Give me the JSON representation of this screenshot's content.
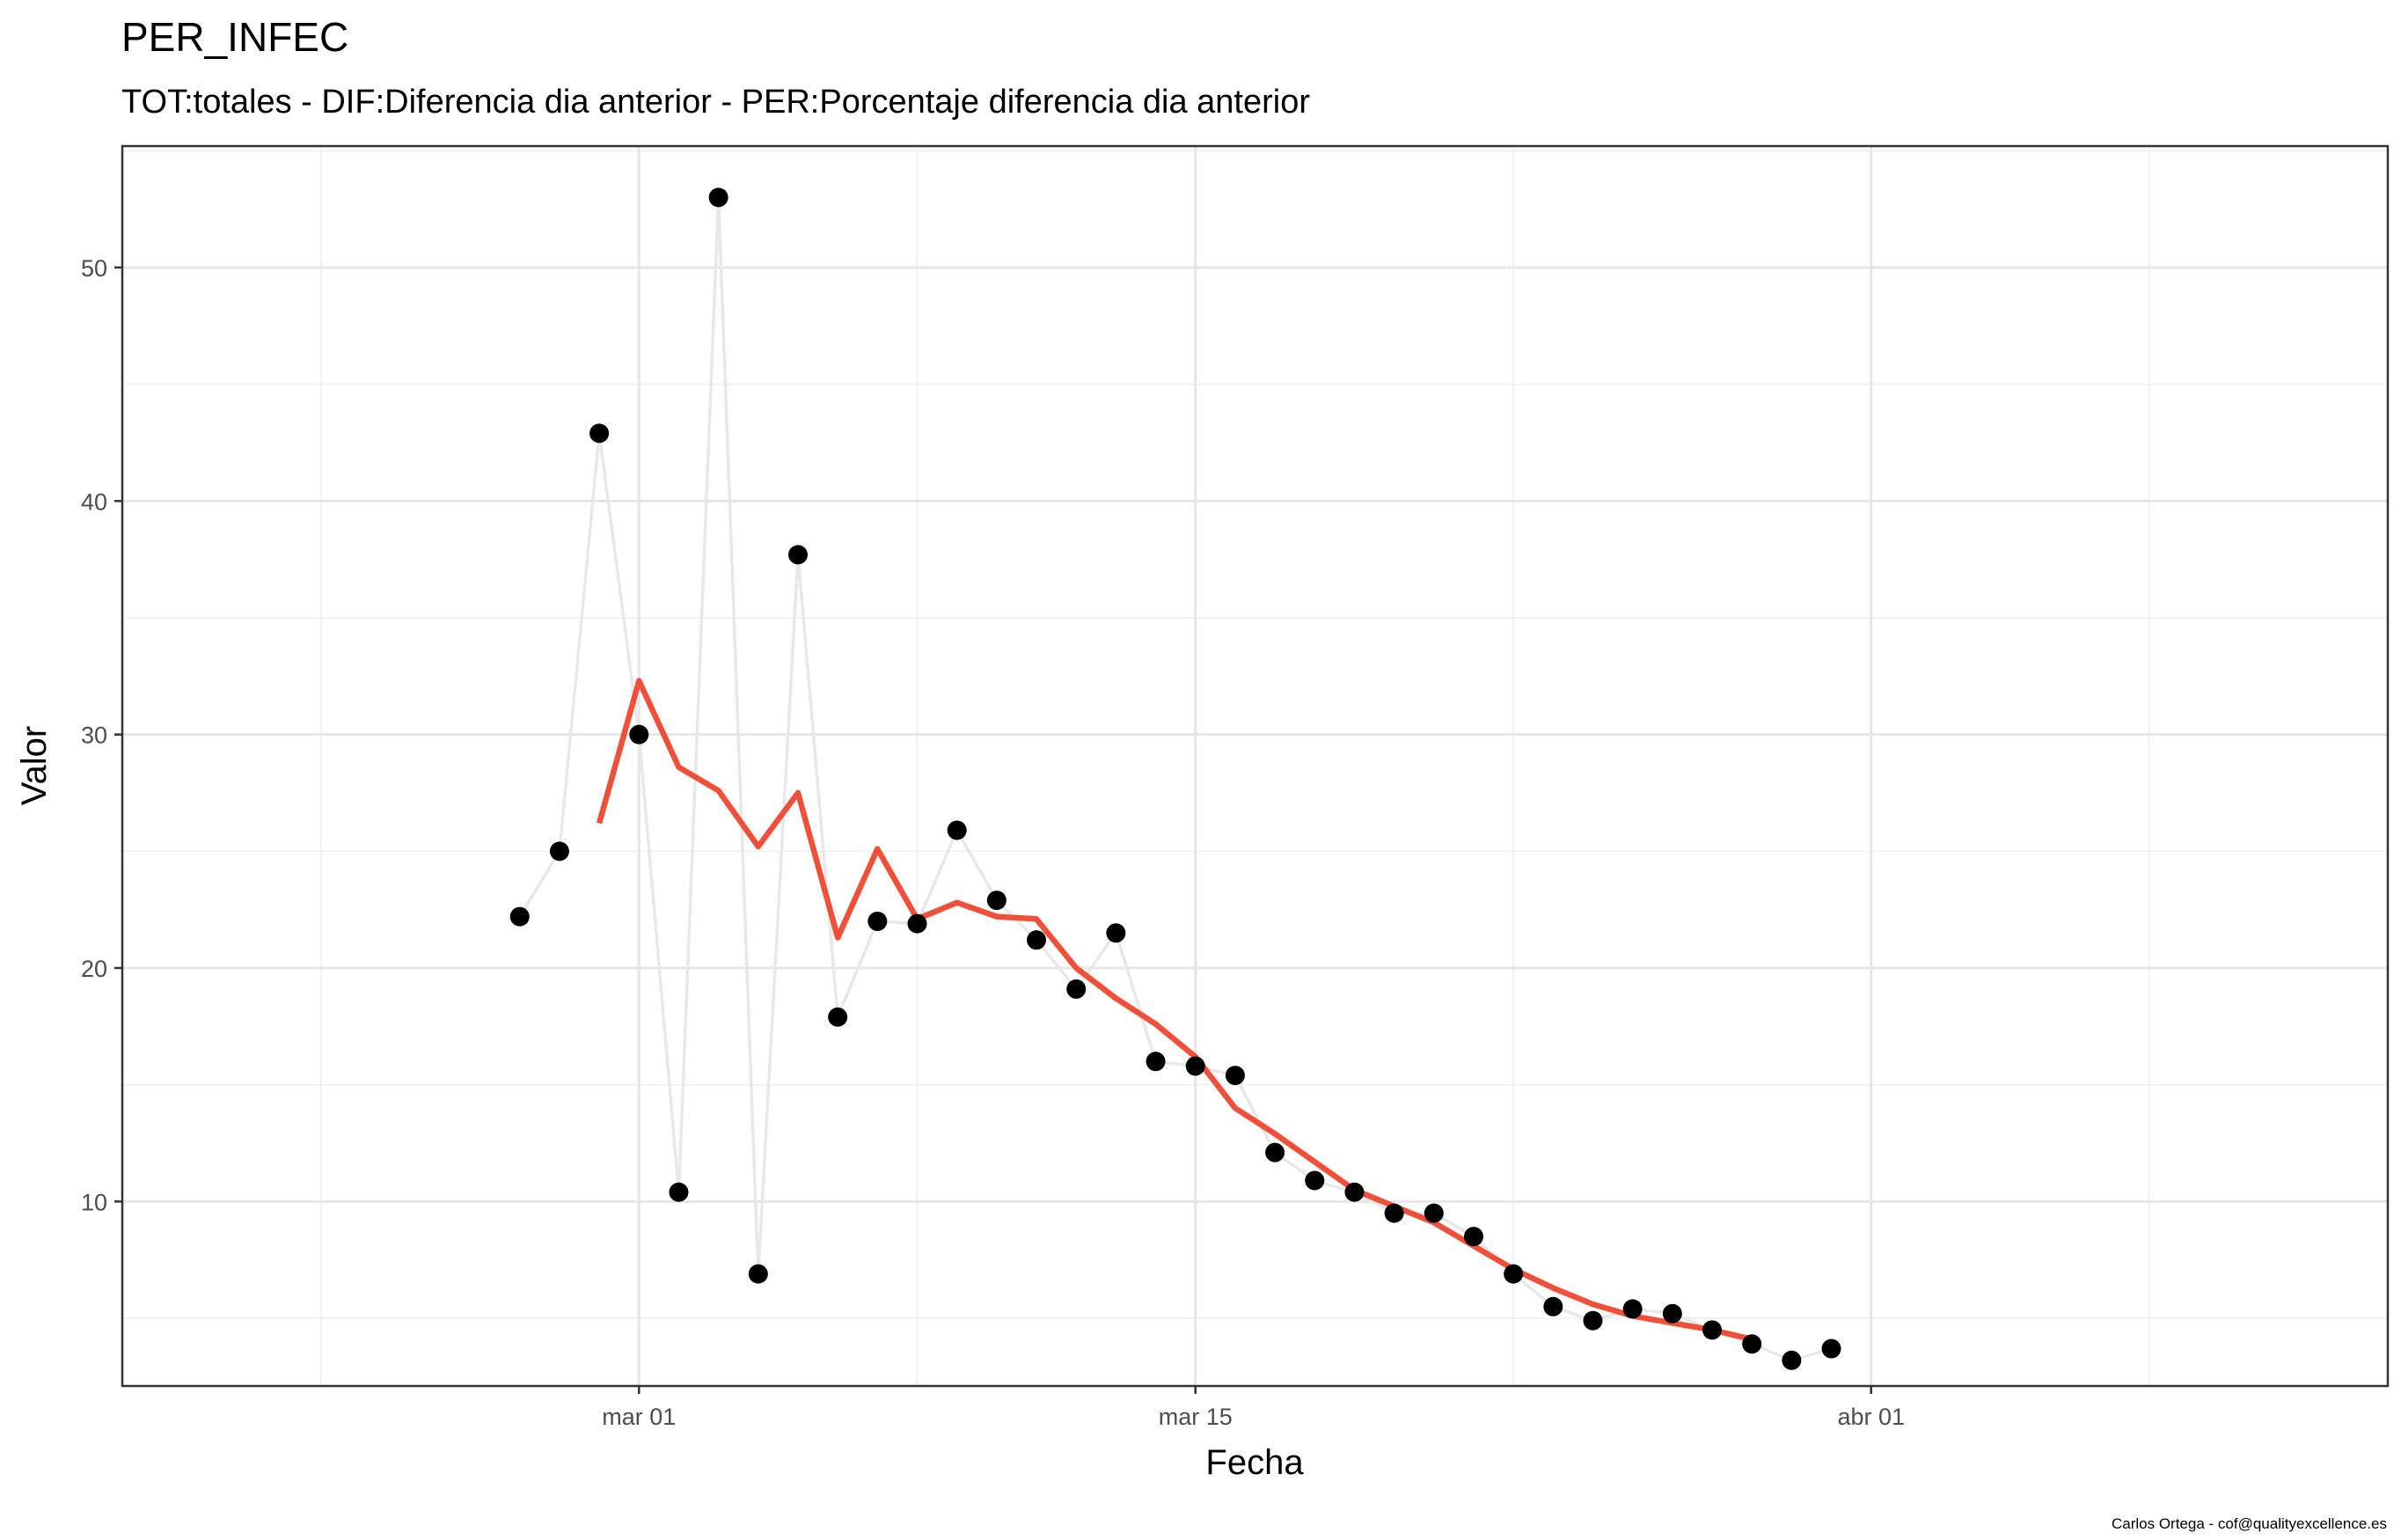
{
  "chart_data": {
    "type": "line",
    "title": "PER_INFEC",
    "subtitle": "TOT:totales - DIF:Diferencia dia anterior - PER:Porcentaje diferencia dia anterior",
    "xlabel": "Fecha",
    "ylabel": "Valor",
    "caption": "Carlos Ortega - cof@qualityexcellence.es",
    "x_axis": {
      "type": "date",
      "range": [
        "2020-02-17",
        "2020-04-14"
      ],
      "ticks": [
        {
          "date": "2020-03-01",
          "label": "mar 01"
        },
        {
          "date": "2020-03-15",
          "label": "mar 15"
        },
        {
          "date": "2020-04-01",
          "label": "abr 01"
        }
      ],
      "minor_ticks": [
        "2020-02-22",
        "2020-03-08",
        "2020-03-23",
        "2020-04-08"
      ]
    },
    "y_axis": {
      "range": [
        2.1,
        55.2
      ],
      "ticks": [
        10,
        20,
        30,
        40,
        50
      ],
      "minor_ticks": [
        5,
        15,
        25,
        35,
        45,
        55
      ]
    },
    "grid": true,
    "series": [
      {
        "kind": "points+line",
        "point_color": "#000000",
        "line_color": "#e8e8e8",
        "points": [
          [
            "2020-02-27",
            22.2
          ],
          [
            "2020-02-28",
            25.0
          ],
          [
            "2020-02-29",
            42.9
          ],
          [
            "2020-03-01",
            30.0
          ],
          [
            "2020-03-02",
            10.4
          ],
          [
            "2020-03-03",
            53.0
          ],
          [
            "2020-03-04",
            6.9
          ],
          [
            "2020-03-05",
            37.7
          ],
          [
            "2020-03-06",
            17.9
          ],
          [
            "2020-03-07",
            22.0
          ],
          [
            "2020-03-08",
            21.9
          ],
          [
            "2020-03-09",
            25.9
          ],
          [
            "2020-03-10",
            22.9
          ],
          [
            "2020-03-11",
            21.2
          ],
          [
            "2020-03-12",
            19.1
          ],
          [
            "2020-03-13",
            21.5
          ],
          [
            "2020-03-14",
            16.0
          ],
          [
            "2020-03-15",
            15.8
          ],
          [
            "2020-03-16",
            15.4
          ],
          [
            "2020-03-17",
            12.1
          ],
          [
            "2020-03-18",
            10.9
          ],
          [
            "2020-03-19",
            10.4
          ],
          [
            "2020-03-20",
            9.5
          ],
          [
            "2020-03-21",
            9.5
          ],
          [
            "2020-03-22",
            8.5
          ],
          [
            "2020-03-23",
            6.9
          ],
          [
            "2020-03-24",
            5.5
          ],
          [
            "2020-03-25",
            4.9
          ],
          [
            "2020-03-26",
            5.4
          ],
          [
            "2020-03-27",
            5.2
          ],
          [
            "2020-03-28",
            4.5
          ],
          [
            "2020-03-29",
            3.9
          ],
          [
            "2020-03-30",
            3.2
          ],
          [
            "2020-03-31",
            3.7
          ]
        ]
      },
      {
        "kind": "line",
        "line_color": "#f0503a",
        "points": [
          [
            "2020-02-29",
            26.2
          ],
          [
            "2020-03-01",
            32.3
          ],
          [
            "2020-03-02",
            28.6
          ],
          [
            "2020-03-03",
            27.6
          ],
          [
            "2020-03-04",
            25.2
          ],
          [
            "2020-03-05",
            27.5
          ],
          [
            "2020-03-06",
            21.3
          ],
          [
            "2020-03-07",
            25.1
          ],
          [
            "2020-03-08",
            22.1
          ],
          [
            "2020-03-09",
            22.8
          ],
          [
            "2020-03-10",
            22.2
          ],
          [
            "2020-03-11",
            22.1
          ],
          [
            "2020-03-12",
            20.0
          ],
          [
            "2020-03-13",
            18.7
          ],
          [
            "2020-03-14",
            17.6
          ],
          [
            "2020-03-15",
            16.2
          ],
          [
            "2020-03-16",
            14.0
          ],
          [
            "2020-03-17",
            12.9
          ],
          [
            "2020-03-18",
            11.7
          ],
          [
            "2020-03-19",
            10.5
          ],
          [
            "2020-03-20",
            9.8
          ],
          [
            "2020-03-21",
            9.1
          ],
          [
            "2020-03-22",
            8.1
          ],
          [
            "2020-03-23",
            7.1
          ],
          [
            "2020-03-24",
            6.3
          ],
          [
            "2020-03-25",
            5.6
          ],
          [
            "2020-03-26",
            5.1
          ],
          [
            "2020-03-27",
            4.8
          ],
          [
            "2020-03-28",
            4.5
          ],
          [
            "2020-03-29",
            4.1
          ]
        ]
      }
    ]
  }
}
